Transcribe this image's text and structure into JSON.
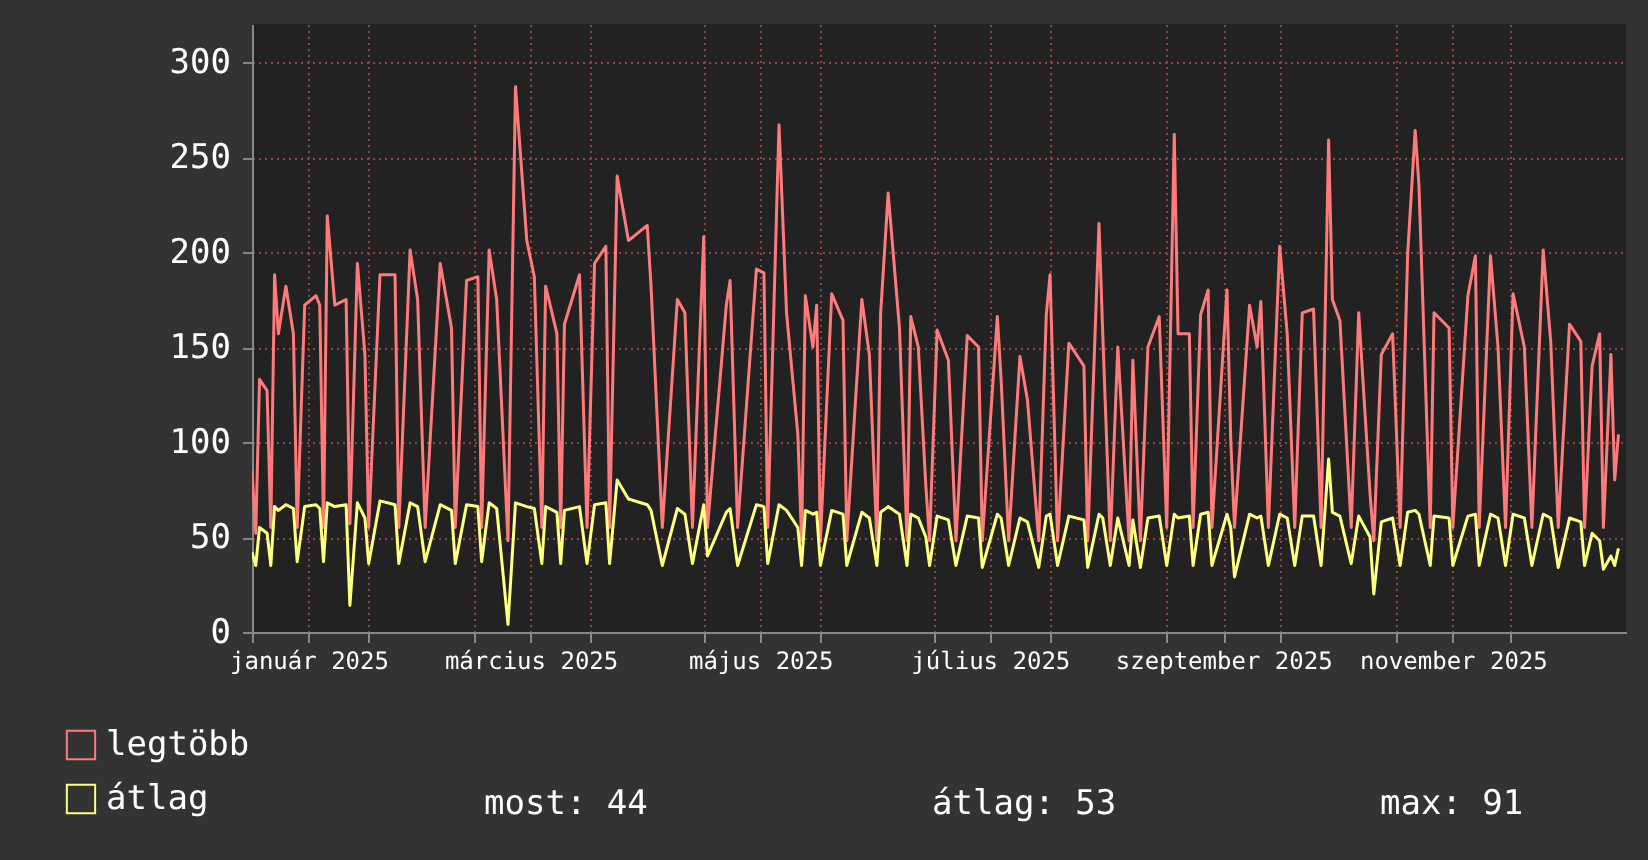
{
  "chart_data": {
    "type": "line",
    "x": [
      "2025-01-01",
      "2025-01-02",
      "2025-01-03",
      "2025-01-05",
      "2025-01-06",
      "2025-01-07",
      "2025-01-08",
      "2025-01-10",
      "2025-01-12",
      "2025-01-13",
      "2025-01-15",
      "2025-01-18",
      "2025-01-19",
      "2025-01-20",
      "2025-01-21",
      "2025-01-23",
      "2025-01-26",
      "2025-01-27",
      "2025-01-29",
      "2025-01-31",
      "2025-02-01",
      "2025-02-04",
      "2025-02-08",
      "2025-02-09",
      "2025-02-12",
      "2025-02-14",
      "2025-02-16",
      "2025-02-20",
      "2025-02-23",
      "2025-02-24",
      "2025-02-27",
      "2025-03-02",
      "2025-03-03",
      "2025-03-05",
      "2025-03-07",
      "2025-03-10",
      "2025-03-12",
      "2025-03-15",
      "2025-03-17",
      "2025-03-19",
      "2025-03-20",
      "2025-03-23",
      "2025-03-24",
      "2025-03-25",
      "2025-03-29",
      "2025-03-31",
      "2025-04-02",
      "2025-04-05",
      "2025-04-06",
      "2025-04-08",
      "2025-04-11",
      "2025-04-16",
      "2025-04-17",
      "2025-04-20",
      "2025-04-24",
      "2025-04-26",
      "2025-04-28",
      "2025-05-01",
      "2025-05-02",
      "2025-05-07",
      "2025-05-08",
      "2025-05-10",
      "2025-05-15",
      "2025-05-17",
      "2025-05-18",
      "2025-05-21",
      "2025-05-23",
      "2025-05-26",
      "2025-05-27",
      "2025-05-28",
      "2025-05-30",
      "2025-05-31",
      "2025-06-01",
      "2025-06-04",
      "2025-06-07",
      "2025-06-08",
      "2025-06-12",
      "2025-06-14",
      "2025-06-16",
      "2025-06-17",
      "2025-06-19",
      "2025-06-22",
      "2025-06-24",
      "2025-06-25",
      "2025-06-27",
      "2025-06-29",
      "2025-06-30",
      "2025-07-02",
      "2025-07-05",
      "2025-07-07",
      "2025-07-10",
      "2025-07-13",
      "2025-07-14",
      "2025-07-18",
      "2025-07-19",
      "2025-07-21",
      "2025-07-24",
      "2025-07-26",
      "2025-07-29",
      "2025-07-31",
      "2025-08-01",
      "2025-08-03",
      "2025-08-06",
      "2025-08-10",
      "2025-08-11",
      "2025-08-14",
      "2025-08-15",
      "2025-08-17",
      "2025-08-19",
      "2025-08-22",
      "2025-08-23",
      "2025-08-25",
      "2025-08-27",
      "2025-08-30",
      "2025-09-01",
      "2025-09-03",
      "2025-09-04",
      "2025-09-07",
      "2025-09-08",
      "2025-09-10",
      "2025-09-12",
      "2025-09-13",
      "2025-09-17",
      "2025-09-18",
      "2025-09-19",
      "2025-09-23",
      "2025-09-25",
      "2025-09-26",
      "2025-09-28",
      "2025-10-01",
      "2025-10-03",
      "2025-10-05",
      "2025-10-07",
      "2025-10-10",
      "2025-10-12",
      "2025-10-14",
      "2025-10-15",
      "2025-10-17",
      "2025-10-20",
      "2025-10-22",
      "2025-10-25",
      "2025-10-26",
      "2025-10-28",
      "2025-10-31",
      "2025-11-02",
      "2025-11-04",
      "2025-11-06",
      "2025-11-07",
      "2025-11-10",
      "2025-11-11",
      "2025-11-15",
      "2025-11-16",
      "2025-11-20",
      "2025-11-22",
      "2025-11-23",
      "2025-11-26",
      "2025-11-28",
      "2025-11-30",
      "2025-12-02",
      "2025-12-05",
      "2025-12-07",
      "2025-12-10",
      "2025-12-12",
      "2025-12-14",
      "2025-12-17",
      "2025-12-20",
      "2025-12-21",
      "2025-12-23",
      "2025-12-25",
      "2025-12-26",
      "2025-12-28",
      "2025-12-29",
      "2025-12-30"
    ],
    "series": [
      {
        "name": "legtöbb",
        "color": "#ff7b7b",
        "values": [
          85,
          52,
          133,
          127,
          55,
          188,
          157,
          182,
          157,
          55,
          172,
          177,
          172,
          55,
          219,
          172,
          175,
          57,
          194,
          146,
          55,
          188,
          188,
          55,
          201,
          175,
          55,
          194,
          160,
          55,
          185,
          187,
          55,
          201,
          175,
          48,
          287,
          206,
          187,
          55,
          182,
          157,
          55,
          162,
          188,
          55,
          194,
          203,
          55,
          240,
          206,
          214,
          182,
          55,
          175,
          168,
          55,
          208,
          55,
          172,
          185,
          55,
          191,
          189,
          55,
          267,
          168,
          104,
          48,
          177,
          150,
          172,
          48,
          178,
          164,
          48,
          175,
          146,
          48,
          168,
          231,
          160,
          48,
          166,
          150,
          77,
          48,
          159,
          143,
          48,
          156,
          150,
          48,
          166,
          133,
          48,
          145,
          122,
          48,
          167,
          188,
          48,
          152,
          140,
          48,
          215,
          157,
          48,
          150,
          48,
          143,
          48,
          150,
          166,
          55,
          262,
          157,
          157,
          55,
          167,
          180,
          55,
          180,
          101,
          55,
          172,
          150,
          174,
          55,
          203,
          157,
          55,
          168,
          170,
          55,
          259,
          175,
          164,
          55,
          168,
          73,
          48,
          146,
          157,
          55,
          199,
          264,
          235,
          55,
          168,
          160,
          55,
          177,
          198,
          55,
          198,
          150,
          55,
          178,
          150,
          55,
          201,
          153,
          55,
          162,
          153,
          55,
          140,
          157,
          55,
          146,
          80,
          104
        ]
      },
      {
        "name": "átlag",
        "color": "#ffff80",
        "values": [
          42,
          35,
          55,
          52,
          35,
          66,
          64,
          67,
          65,
          37,
          66,
          67,
          65,
          37,
          68,
          66,
          67,
          14,
          68,
          60,
          36,
          69,
          67,
          36,
          68,
          66,
          37,
          67,
          64,
          36,
          67,
          66,
          37,
          68,
          65,
          4,
          68,
          66,
          65,
          36,
          66,
          63,
          36,
          64,
          66,
          36,
          67,
          68,
          36,
          80,
          70,
          67,
          64,
          35,
          65,
          62,
          36,
          67,
          40,
          63,
          65,
          35,
          67,
          66,
          36,
          67,
          64,
          55,
          35,
          64,
          62,
          63,
          35,
          64,
          62,
          35,
          63,
          60,
          35,
          63,
          66,
          62,
          35,
          62,
          60,
          50,
          35,
          61,
          59,
          35,
          61,
          60,
          34,
          62,
          60,
          35,
          60,
          58,
          34,
          61,
          62,
          35,
          61,
          59,
          34,
          62,
          60,
          35,
          60,
          35,
          59,
          34,
          60,
          61,
          35,
          62,
          60,
          61,
          35,
          62,
          63,
          35,
          62,
          55,
          29,
          62,
          60,
          61,
          35,
          62,
          60,
          35,
          61,
          61,
          35,
          91,
          63,
          61,
          36,
          61,
          50,
          20,
          58,
          60,
          35,
          63,
          64,
          62,
          35,
          61,
          60,
          35,
          61,
          62,
          35,
          62,
          60,
          35,
          62,
          60,
          35,
          62,
          60,
          34,
          60,
          58,
          35,
          52,
          48,
          33,
          40,
          35,
          44
        ]
      }
    ],
    "xlim": [
      "2025-01-01",
      "2026-01-01"
    ],
    "xticks": [
      {
        "value": "2025-01-01",
        "label": null
      },
      {
        "value": "2025-01-16",
        "label": "január 2025"
      },
      {
        "value": "2025-02-01",
        "label": null
      },
      {
        "value": "2025-03-01",
        "label": null
      },
      {
        "value": "2025-03-16",
        "label": "március 2025"
      },
      {
        "value": "2025-04-01",
        "label": null
      },
      {
        "value": "2025-05-01",
        "label": null
      },
      {
        "value": "2025-05-16",
        "label": "május 2025"
      },
      {
        "value": "2025-06-01",
        "label": null
      },
      {
        "value": "2025-07-01",
        "label": null
      },
      {
        "value": "2025-07-16",
        "label": "július 2025"
      },
      {
        "value": "2025-08-01",
        "label": null
      },
      {
        "value": "2025-09-01",
        "label": null
      },
      {
        "value": "2025-09-16",
        "label": "szeptember 2025"
      },
      {
        "value": "2025-10-01",
        "label": null
      },
      {
        "value": "2025-11-01",
        "label": null
      },
      {
        "value": "2025-11-16",
        "label": "november 2025"
      },
      {
        "value": "2025-12-01",
        "label": null
      }
    ],
    "ylim": [
      0,
      320
    ],
    "yticks": [
      0,
      50,
      100,
      150,
      200,
      250,
      300
    ],
    "grid": true,
    "legend": "bottom left",
    "annotations": [
      "most: 44",
      "átlag: 53",
      "max: 91"
    ]
  }
}
